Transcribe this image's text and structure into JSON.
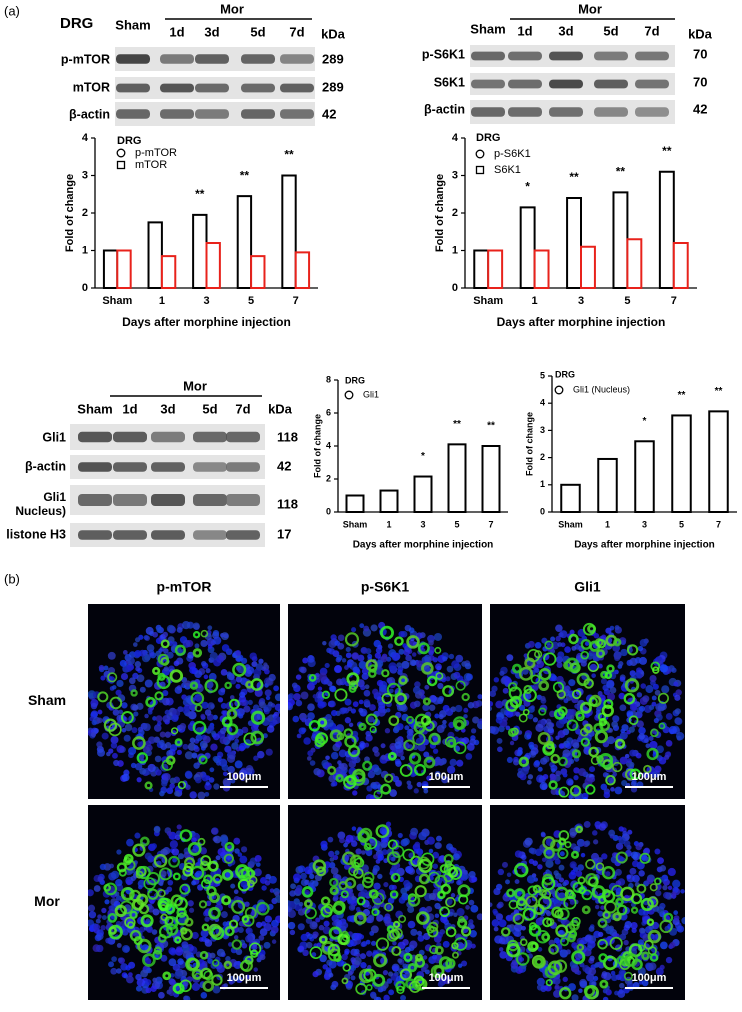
{
  "panel_labels": [
    "(a)",
    "(b)"
  ],
  "blots": [
    {
      "tissue": "DRG",
      "sham": "Sham",
      "group": "Mor",
      "lanes": [
        "1d",
        "3d",
        "5d",
        "7d"
      ],
      "unit": "kDa",
      "rows": [
        {
          "label": "p-mTOR",
          "kda": 289
        },
        {
          "label": "mTOR",
          "kda": 289
        },
        {
          "label": "β-actin",
          "kda": 42
        }
      ]
    },
    {
      "sham": "Sham",
      "group": "Mor",
      "lanes": [
        "1d",
        "3d",
        "5d",
        "7d"
      ],
      "unit": "kDa",
      "rows": [
        {
          "label": "p-S6K1",
          "kda": 70
        },
        {
          "label": "S6K1",
          "kda": 70
        },
        {
          "label": "β-actin",
          "kda": 42
        }
      ]
    },
    {
      "sham": "Sham",
      "group": "Mor",
      "lanes": [
        "1d",
        "3d",
        "5d",
        "7d"
      ],
      "unit": "kDa",
      "rows": [
        {
          "label": "Gli1",
          "kda": 118
        },
        {
          "label": "β-actin",
          "kda": 42
        },
        {
          "label": [
            "Gli1",
            "Nucleus)"
          ],
          "kda": 118
        },
        {
          "label": "listone H3",
          "kda": 17
        }
      ]
    }
  ],
  "chart_data": [
    {
      "type": "bar",
      "title": "DRG",
      "ylabel": "Fold of change",
      "xlabel": "Days after morphine injection",
      "categories": [
        "Sham",
        "1",
        "3",
        "5",
        "7"
      ],
      "ylim": [
        0,
        4
      ],
      "yticks": [
        0,
        1,
        2,
        3,
        4
      ],
      "series": [
        {
          "name": "p-mTOR",
          "color": "#000000",
          "marker": "circle",
          "values": [
            1,
            1.75,
            1.95,
            2.45,
            3.0
          ],
          "significance": [
            null,
            null,
            "**",
            "**",
            "**"
          ]
        },
        {
          "name": "mTOR",
          "color": "#e8221b",
          "marker": "square",
          "values": [
            1,
            0.85,
            1.2,
            0.85,
            0.95
          ]
        }
      ]
    },
    {
      "type": "bar",
      "title": "DRG",
      "ylabel": "Fold of change",
      "xlabel": "Days after morphine injection",
      "categories": [
        "Sham",
        "1",
        "3",
        "5",
        "7"
      ],
      "ylim": [
        0,
        4
      ],
      "yticks": [
        0,
        1,
        2,
        3,
        4
      ],
      "series": [
        {
          "name": "p-S6K1",
          "color": "#000000",
          "marker": "circle",
          "values": [
            1,
            2.15,
            2.4,
            2.55,
            3.1
          ],
          "significance": [
            null,
            "*",
            "**",
            "**",
            "**"
          ]
        },
        {
          "name": "S6K1",
          "color": "#e8221b",
          "marker": "square",
          "values": [
            1,
            1.0,
            1.1,
            1.3,
            1.2
          ]
        }
      ]
    },
    {
      "type": "bar",
      "title": "DRG",
      "ylabel": "Fold of change",
      "xlabel": "Days after morphine injection",
      "categories": [
        "Sham",
        "1",
        "3",
        "5",
        "7"
      ],
      "ylim": [
        0,
        8
      ],
      "yticks": [
        0,
        2,
        4,
        6,
        8
      ],
      "series": [
        {
          "name": "Gli1",
          "color": "#000000",
          "marker": "circle",
          "values": [
            1,
            1.3,
            2.15,
            4.1,
            4.0
          ],
          "significance": [
            null,
            null,
            "*",
            "**",
            "**"
          ]
        }
      ]
    },
    {
      "type": "bar",
      "title": "DRG",
      "ylabel": "Fold of change",
      "xlabel": "Days after morphine injection",
      "categories": [
        "Sham",
        "1",
        "3",
        "5",
        "7"
      ],
      "ylim": [
        0,
        5
      ],
      "yticks": [
        0,
        1,
        2,
        3,
        4,
        5
      ],
      "series": [
        {
          "name": "Gli1 (Nucleus)",
          "color": "#000000",
          "marker": "circle",
          "values": [
            1,
            1.95,
            2.6,
            3.55,
            3.7
          ],
          "significance": [
            null,
            null,
            "*",
            "**",
            "**"
          ]
        }
      ]
    }
  ],
  "micrographs": {
    "columns": [
      "p-mTOR",
      "p-S6K1",
      "Gli1"
    ],
    "rows": [
      "Sham",
      "Mor"
    ],
    "scale_bar": "100μm"
  }
}
